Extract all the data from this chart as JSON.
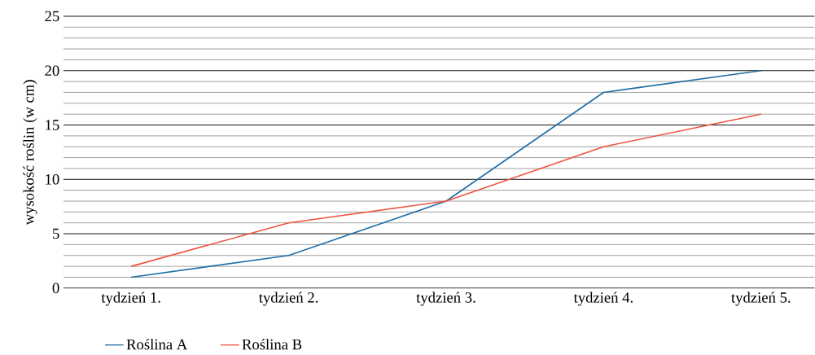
{
  "chart_data": {
    "type": "line",
    "ylabel": "wysokość roślin (w cm)",
    "categories": [
      "tydzień 1.",
      "tydzień 2.",
      "tydzień 3.",
      "tydzień 4.",
      "tydzień 5."
    ],
    "series": [
      {
        "name": "Roślina A",
        "color": "#1f6fa8",
        "values": [
          1,
          3,
          8,
          18,
          20
        ]
      },
      {
        "name": "Roślina B",
        "color": "#f0533f",
        "values": [
          2,
          6,
          8,
          13,
          16
        ]
      }
    ],
    "ylim": [
      0,
      25
    ],
    "yticks": [
      0,
      5,
      10,
      15,
      20,
      25
    ],
    "grid": "y",
    "legend": "bottom",
    "marker": "none",
    "line_style": "solid"
  }
}
